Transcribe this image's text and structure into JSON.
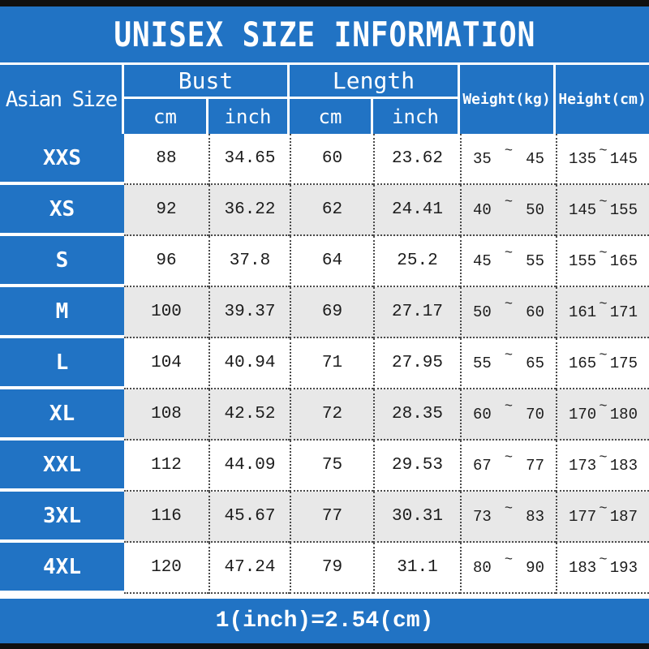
{
  "title": "UNISEX SIZE INFORMATION",
  "footer_note": "1(inch)=2.54(cm)",
  "tilde": "~",
  "colors": {
    "primary_blue": "#2173c4",
    "row_alt_gray": "#e8e8e8",
    "border_black": "#101010"
  },
  "header": {
    "size_col": "Asian Size",
    "bust": "Bust",
    "length": "Length",
    "weight": "Weight(kg)",
    "height": "Height(cm)",
    "unit_cm": "cm",
    "unit_inch": "inch"
  },
  "rows": [
    {
      "size": "XXS",
      "bust_cm": "88",
      "bust_inch": "34.65",
      "length_cm": "60",
      "length_inch": "23.62",
      "weight_min": "35",
      "weight_max": "45",
      "height_min": "135",
      "height_max": "145"
    },
    {
      "size": "XS",
      "bust_cm": "92",
      "bust_inch": "36.22",
      "length_cm": "62",
      "length_inch": "24.41",
      "weight_min": "40",
      "weight_max": "50",
      "height_min": "145",
      "height_max": "155"
    },
    {
      "size": "S",
      "bust_cm": "96",
      "bust_inch": "37.8",
      "length_cm": "64",
      "length_inch": "25.2",
      "weight_min": "45",
      "weight_max": "55",
      "height_min": "155",
      "height_max": "165"
    },
    {
      "size": "M",
      "bust_cm": "100",
      "bust_inch": "39.37",
      "length_cm": "69",
      "length_inch": "27.17",
      "weight_min": "50",
      "weight_max": "60",
      "height_min": "161",
      "height_max": "171"
    },
    {
      "size": "L",
      "bust_cm": "104",
      "bust_inch": "40.94",
      "length_cm": "71",
      "length_inch": "27.95",
      "weight_min": "55",
      "weight_max": "65",
      "height_min": "165",
      "height_max": "175"
    },
    {
      "size": "XL",
      "bust_cm": "108",
      "bust_inch": "42.52",
      "length_cm": "72",
      "length_inch": "28.35",
      "weight_min": "60",
      "weight_max": "70",
      "height_min": "170",
      "height_max": "180"
    },
    {
      "size": "XXL",
      "bust_cm": "112",
      "bust_inch": "44.09",
      "length_cm": "75",
      "length_inch": "29.53",
      "weight_min": "67",
      "weight_max": "77",
      "height_min": "173",
      "height_max": "183"
    },
    {
      "size": "3XL",
      "bust_cm": "116",
      "bust_inch": "45.67",
      "length_cm": "77",
      "length_inch": "30.31",
      "weight_min": "73",
      "weight_max": "83",
      "height_min": "177",
      "height_max": "187"
    },
    {
      "size": "4XL",
      "bust_cm": "120",
      "bust_inch": "47.24",
      "length_cm": "79",
      "length_inch": "31.1",
      "weight_min": "80",
      "weight_max": "90",
      "height_min": "183",
      "height_max": "193"
    }
  ]
}
